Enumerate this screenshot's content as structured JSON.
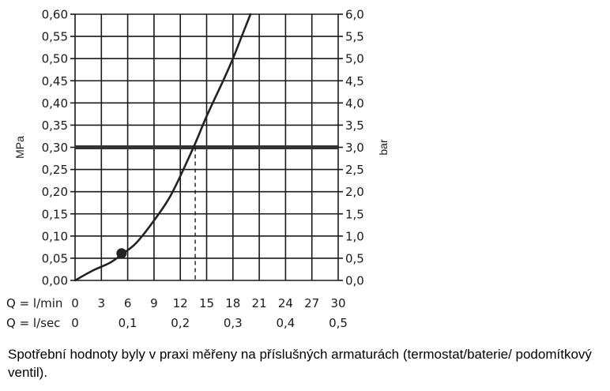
{
  "chart_data": {
    "type": "line",
    "y_left": {
      "label": "MPa",
      "min": 0,
      "max": 0.6,
      "step": 0.05,
      "ticks": [
        "0,00",
        "0,05",
        "0,10",
        "0,15",
        "0,20",
        "0,25",
        "0,30",
        "0,35",
        "0,40",
        "0,45",
        "0,50",
        "0,55",
        "0,60"
      ]
    },
    "y_right": {
      "label": "bar",
      "ticks": [
        "0,0",
        "0,5",
        "1,0",
        "1,5",
        "2,0",
        "2,5",
        "3,0",
        "3,5",
        "4,0",
        "4,5",
        "5,0",
        "5,5",
        "6,0"
      ]
    },
    "x_min": {
      "label": "Q = l/min",
      "min": 0,
      "max": 30,
      "tick_values": [
        0,
        3,
        6,
        9,
        12,
        15,
        18,
        21,
        24,
        27,
        30
      ],
      "ticks": [
        "0",
        "3",
        "6",
        "9",
        "12",
        "15",
        "18",
        "21",
        "24",
        "27",
        "30"
      ]
    },
    "x_sec": {
      "label": "Q = l/sec",
      "tick_values": [
        0,
        6,
        12,
        18,
        24,
        30
      ],
      "ticks": [
        "0",
        "0,1",
        "0,2",
        "0,3",
        "0,4",
        "0,5"
      ]
    },
    "grid": true,
    "series": [
      {
        "x": [
          0,
          2,
          4,
          5.5,
          7,
          9,
          11,
          13.5,
          15,
          17,
          18,
          19,
          20
        ],
        "y": [
          0,
          0.022,
          0.04,
          0.061,
          0.085,
          0.135,
          0.195,
          0.3,
          0.37,
          0.455,
          0.5,
          0.55,
          0.6
        ]
      }
    ],
    "reference_line": {
      "y": 0.3
    },
    "operating_point": {
      "x": 13.7,
      "y": 0.3
    },
    "marker": {
      "x": 5.3,
      "y": 0.061
    }
  },
  "caption": "Spotřební hodnoty byly v praxi měřeny na příslušných armaturách (termostat/baterie/ podomítkový ventil)."
}
